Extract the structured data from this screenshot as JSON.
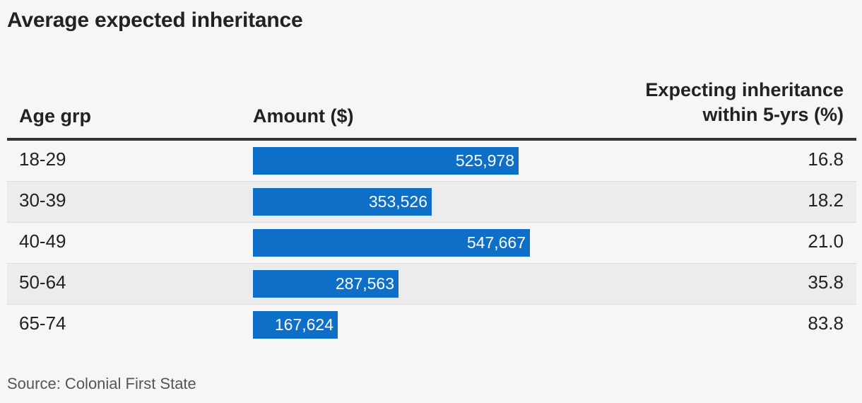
{
  "title": "Average expected inheritance",
  "source": "Source: Colonial First State",
  "chart_data": {
    "type": "table",
    "title": "Average expected inheritance",
    "columns": [
      "Age grp",
      "Amount ($)",
      "Expecting inheritance within 5-yrs (%)"
    ],
    "column_header_lines": {
      "age": "Age grp",
      "amount": "Amount ($)",
      "pct_line1": "Expecting inheritance",
      "pct_line2": "within 5-yrs (%)"
    },
    "bar_max": 547667,
    "rows": [
      {
        "age": "18-29",
        "amount": 525978,
        "amount_label": "525,978",
        "pct": "16.8"
      },
      {
        "age": "30-39",
        "amount": 353526,
        "amount_label": "353,526",
        "pct": "18.2"
      },
      {
        "age": "40-49",
        "amount": 547667,
        "amount_label": "547,667",
        "pct": "21.0"
      },
      {
        "age": "50-64",
        "amount": 287563,
        "amount_label": "287,563",
        "pct": "35.8"
      },
      {
        "age": "65-74",
        "amount": 167624,
        "amount_label": "167,624",
        "pct": "83.8"
      }
    ],
    "bar_color": "#0e6fc9"
  }
}
